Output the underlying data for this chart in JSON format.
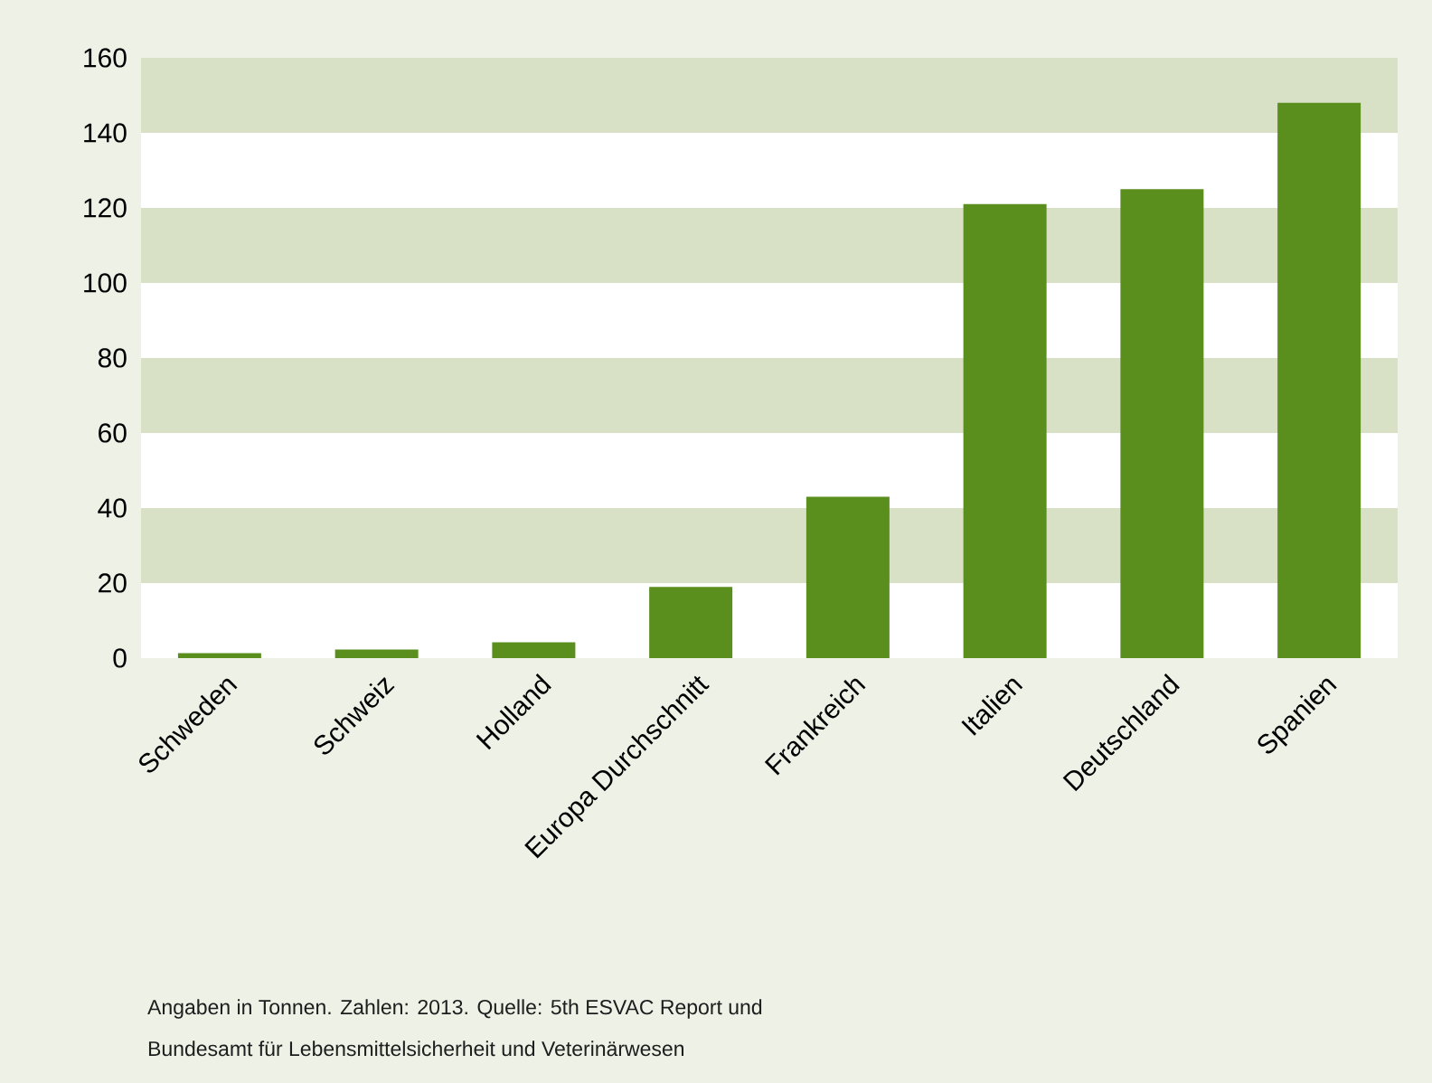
{
  "chart_data": {
    "type": "bar",
    "categories": [
      "Schweden",
      "Schweiz",
      "Holland",
      "Europa Durchschnitt",
      "Frankreich",
      "Italien",
      "Deutschland",
      "Spanien"
    ],
    "values": [
      1.3,
      2.3,
      4.2,
      19,
      43,
      121,
      125,
      148
    ],
    "color": "#5a8f1e",
    "ylim": [
      0,
      160
    ],
    "yticks": [
      0,
      20,
      40,
      60,
      80,
      100,
      120,
      140,
      160
    ],
    "bands": [
      {
        "axis": "y",
        "from": 20,
        "to": 40,
        "color": "#d8e0c5"
      },
      {
        "axis": "y",
        "from": 60,
        "to": 80,
        "color": "#d8e0c5"
      },
      {
        "axis": "y",
        "from": 100,
        "to": 120,
        "color": "#d8e0c5"
      },
      {
        "axis": "y",
        "from": 140,
        "to": 160,
        "color": "#d8e0c5"
      }
    ],
    "annotations": [
      "Angaben in Tonnen. Zahlen: 2013. Quelle: 5th ESVAC Report und",
      "Bundesamt für Lebensmittelsicherheit und Veterinärwesen"
    ]
  }
}
